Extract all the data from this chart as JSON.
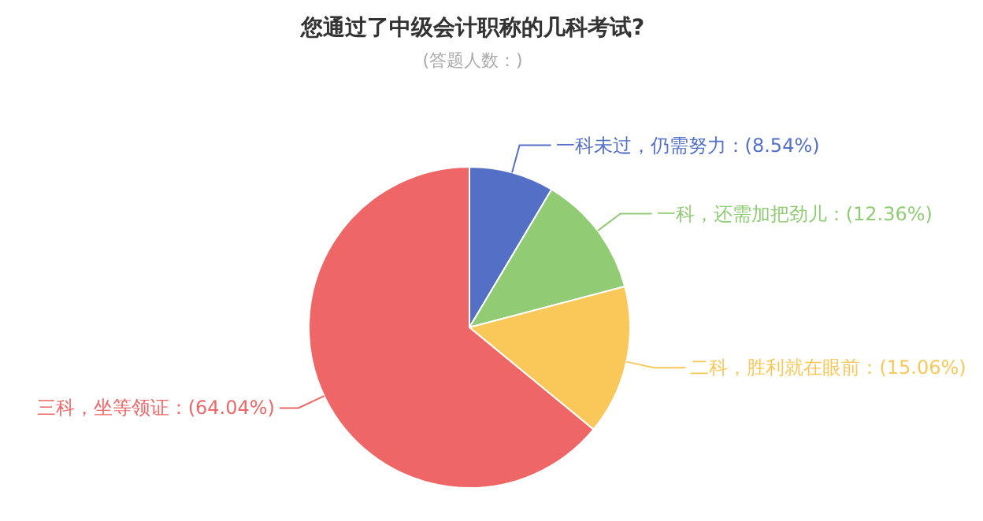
{
  "chart_data": {
    "type": "pie",
    "title": "您通过了中级会计职称的几科考试?",
    "subtitle": "(答题人数：)",
    "categories": [
      "一科未过，仍需努力",
      "一科，还需加把劲儿",
      "二科，胜利就在眼前",
      "三科，坐等领证"
    ],
    "values": [
      8.54,
      12.36,
      15.06,
      64.04
    ],
    "value_labels": [
      "(8.54%)",
      "(12.36%)",
      "(15.06%)",
      "(64.04%)"
    ],
    "colors": [
      "#5470c6",
      "#91cc75",
      "#fac858",
      "#ee6666"
    ]
  }
}
